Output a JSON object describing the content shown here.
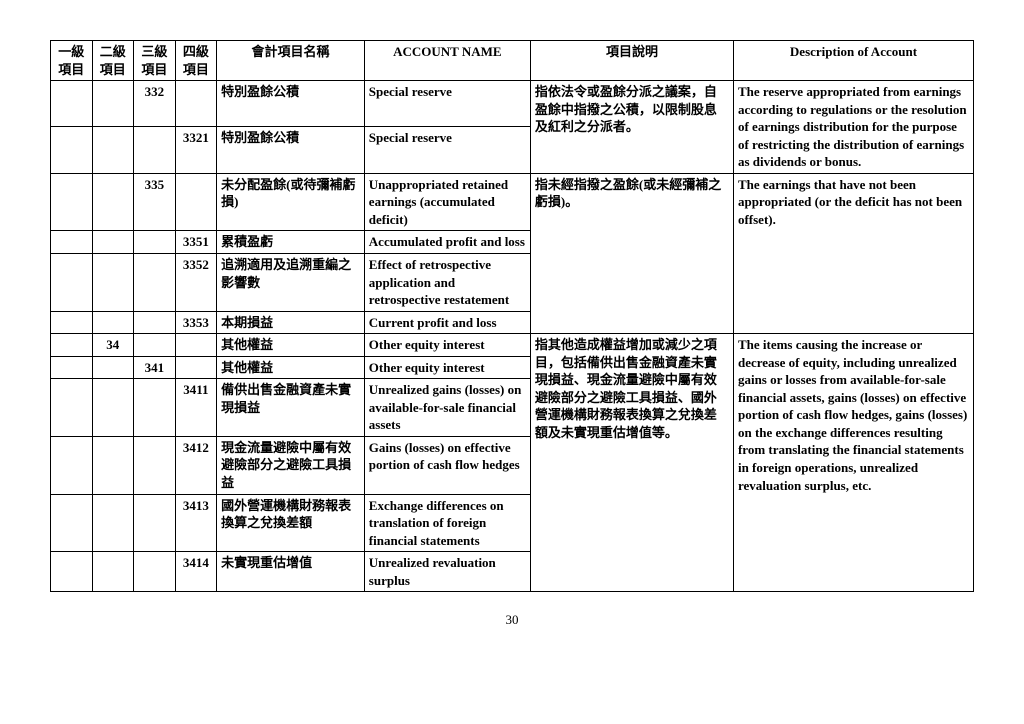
{
  "headers": {
    "l1": "一級項目",
    "l2": "二級項目",
    "l3": "三級項目",
    "l4": "四級項目",
    "nameZh": "會計項目名稱",
    "nameEn": "ACCOUNT NAME",
    "descZh": "項目說明",
    "descEn": "Description of Account"
  },
  "rows": [
    {
      "l1": "",
      "l2": "",
      "l3": "332",
      "l4": "",
      "nameZh": "特別盈餘公積",
      "nameEn": "Special reserve",
      "descZh": "指依法令或盈餘分派之議案，自盈餘中指撥之公積，以限制股息及紅利之分派者。",
      "descEn": "The reserve appropriated from earnings according to regulations or the resolution of earnings distribution for the purpose of restricting the distribution of earnings as dividends or bonus.",
      "descZhSpan": 2,
      "descEnSpan": 2
    },
    {
      "l1": "",
      "l2": "",
      "l3": "",
      "l4": "3321",
      "nameZh": "特別盈餘公積",
      "nameEn": "Special reserve"
    },
    {
      "l1": "",
      "l2": "",
      "l3": "335",
      "l4": "",
      "nameZh": "未分配盈餘(或待彌補虧損)",
      "nameEn": "Unappropriated retained earnings (accumulated deficit)",
      "descZh": "指未經指撥之盈餘(或未經彌補之虧損)。",
      "descEn": "The earnings that have not been appropriated (or the deficit has not been offset).",
      "descZhSpan": 4,
      "descEnSpan": 4
    },
    {
      "l1": "",
      "l2": "",
      "l3": "",
      "l4": "3351",
      "nameZh": "累積盈虧",
      "nameEn": "Accumulated profit and loss"
    },
    {
      "l1": "",
      "l2": "",
      "l3": "",
      "l4": "3352",
      "nameZh": "追溯適用及追溯重編之影響數",
      "nameEn": "Effect of retrospective application and retrospective restatement"
    },
    {
      "l1": "",
      "l2": "",
      "l3": "",
      "l4": "3353",
      "nameZh": "本期損益",
      "nameEn": "Current profit and loss"
    },
    {
      "l1": "",
      "l2": "34",
      "l3": "",
      "l4": "",
      "nameZh": "其他權益",
      "nameEn": "Other equity interest",
      "descZh": "指其他造成權益增加或減少之項目，包括備供出售金融資產未實現損益、現金流量避險中屬有效避險部分之避險工具損益、國外營運機構財務報表換算之兌換差額及未實現重估增值等。",
      "descEn": "The items causing the increase or decrease of equity, including unrealized gains or losses from available-for-sale financial assets, gains (losses) on effective portion of cash flow hedges, gains (losses) on the exchange differences resulting from translating the financial statements in foreign operations, unrealized revaluation surplus, etc.",
      "descZhSpan": 6,
      "descEnSpan": 6
    },
    {
      "l1": "",
      "l2": "",
      "l3": "341",
      "l4": "",
      "nameZh": "其他權益",
      "nameEn": "Other equity interest"
    },
    {
      "l1": "",
      "l2": "",
      "l3": "",
      "l4": "3411",
      "nameZh": "備供出售金融資產未實現損益",
      "nameEn": "Unrealized gains (losses) on available-for-sale financial assets"
    },
    {
      "l1": "",
      "l2": "",
      "l3": "",
      "l4": "3412",
      "nameZh": "現金流量避險中屬有效避險部分之避險工具損益",
      "nameEn": "Gains (losses) on effective portion of cash flow hedges"
    },
    {
      "l1": "",
      "l2": "",
      "l3": "",
      "l4": "3413",
      "nameZh": "國外營運機構財務報表換算之兌換差額",
      "nameEn": "Exchange differences on translation of foreign financial statements"
    },
    {
      "l1": "",
      "l2": "",
      "l3": "",
      "l4": "3414",
      "nameZh": "未實現重估增值",
      "nameEn": "Unrealized revaluation surplus"
    }
  ],
  "pageNumber": "30"
}
